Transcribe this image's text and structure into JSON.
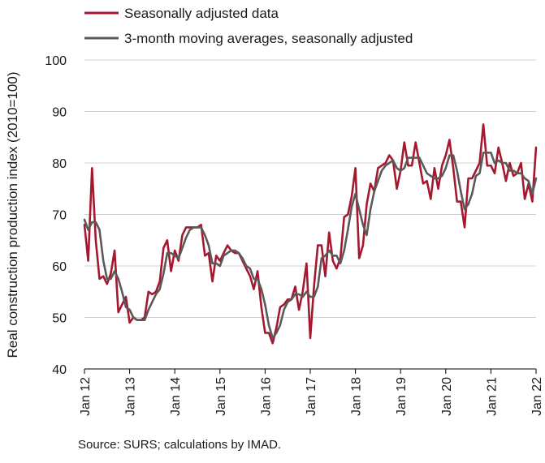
{
  "source_note": "Source: SURS; calculations by IMAD.",
  "chart_data": {
    "type": "line",
    "ylabel": "Real construction production index (2010=100)",
    "ylim": [
      40,
      100
    ],
    "yticks": [
      "40",
      "50",
      "60",
      "70",
      "80",
      "90",
      "100"
    ],
    "xlim": [
      0,
      120
    ],
    "xticks": [
      {
        "label": "Jan 12",
        "x": 0
      },
      {
        "label": "Jan 13",
        "x": 12
      },
      {
        "label": "Jan 14",
        "x": 24
      },
      {
        "label": "Jan 15",
        "x": 36
      },
      {
        "label": "Jan 16",
        "x": 48
      },
      {
        "label": "Jan 17",
        "x": 60
      },
      {
        "label": "Jan 18",
        "x": 72
      },
      {
        "label": "Jan 19",
        "x": 84
      },
      {
        "label": "Jan 20",
        "x": 96
      },
      {
        "label": "Jan 21",
        "x": 108
      },
      {
        "label": "Jan 22",
        "x": 120
      }
    ],
    "grid": "horizontal",
    "legend": "top-left",
    "series": [
      {
        "name": "Seasonally adjusted data",
        "color": "#a6182f",
        "values": [
          68,
          61,
          79,
          65,
          57.5,
          58,
          56.5,
          58.5,
          63,
          51,
          52.5,
          54,
          49,
          50,
          49.5,
          49.5,
          50,
          55,
          54.5,
          55,
          57,
          63.5,
          65,
          59,
          63,
          61,
          66,
          67.5,
          67.5,
          67.5,
          67.5,
          68,
          62,
          62.5,
          57,
          62,
          61,
          62.5,
          64,
          63,
          62.5,
          62.5,
          61,
          59.5,
          58,
          55.5,
          59,
          52,
          47,
          47,
          45,
          48,
          52,
          52.5,
          53.5,
          53.5,
          56,
          51.5,
          55,
          60.5,
          46,
          56,
          64,
          64,
          58,
          66.5,
          61,
          59.5,
          61.5,
          69.5,
          70,
          73.5,
          79,
          61.5,
          64,
          72,
          76,
          74.5,
          79,
          79.5,
          80,
          81.5,
          80.5,
          75,
          78.5,
          84,
          79.5,
          79.5,
          84,
          80,
          76,
          76.5,
          73,
          79,
          75,
          79.5,
          81.5,
          84.5,
          79,
          72.5,
          72.5,
          67.5,
          77,
          77,
          78.5,
          80,
          87.5,
          79.5,
          79.5,
          78,
          83,
          80,
          76.5,
          80,
          77.5,
          78,
          80,
          73,
          76,
          72.5,
          83
        ]
      },
      {
        "name": "3-month moving averages, seasonally adjusted",
        "color": "#5a5a5a",
        "values": [
          69,
          67,
          68.5,
          68.5,
          67,
          61,
          57.5,
          57.5,
          59,
          57.5,
          55,
          52,
          51.5,
          50,
          49.5,
          49.5,
          49.5,
          51.5,
          53,
          54.5,
          55.5,
          58.5,
          62.5,
          62.5,
          62,
          61.5,
          63.5,
          65.5,
          67,
          67.5,
          67.5,
          67.5,
          66,
          64,
          60.5,
          60.5,
          60,
          62,
          62.5,
          63,
          63,
          62.5,
          61.5,
          60,
          59.5,
          57.5,
          57.5,
          55.5,
          52.5,
          48.5,
          46,
          47,
          48.5,
          51.5,
          53,
          53.5,
          54.5,
          54.5,
          54,
          55,
          54,
          54,
          56,
          61.5,
          62,
          63,
          62,
          62,
          60.5,
          63,
          67,
          71.5,
          74,
          71,
          68,
          66,
          71,
          74.5,
          76.5,
          78.5,
          79.5,
          80,
          80.5,
          79,
          78.5,
          79,
          81,
          81,
          81,
          81,
          79.5,
          78,
          77.5,
          77,
          77,
          77.5,
          79,
          81.5,
          81.5,
          78.5,
          74.5,
          71,
          72,
          74,
          77.5,
          78,
          82,
          82,
          82,
          80,
          80.5,
          80,
          80,
          78.5,
          78.5,
          78,
          78,
          77,
          76.5,
          74,
          77
        ]
      }
    ]
  }
}
